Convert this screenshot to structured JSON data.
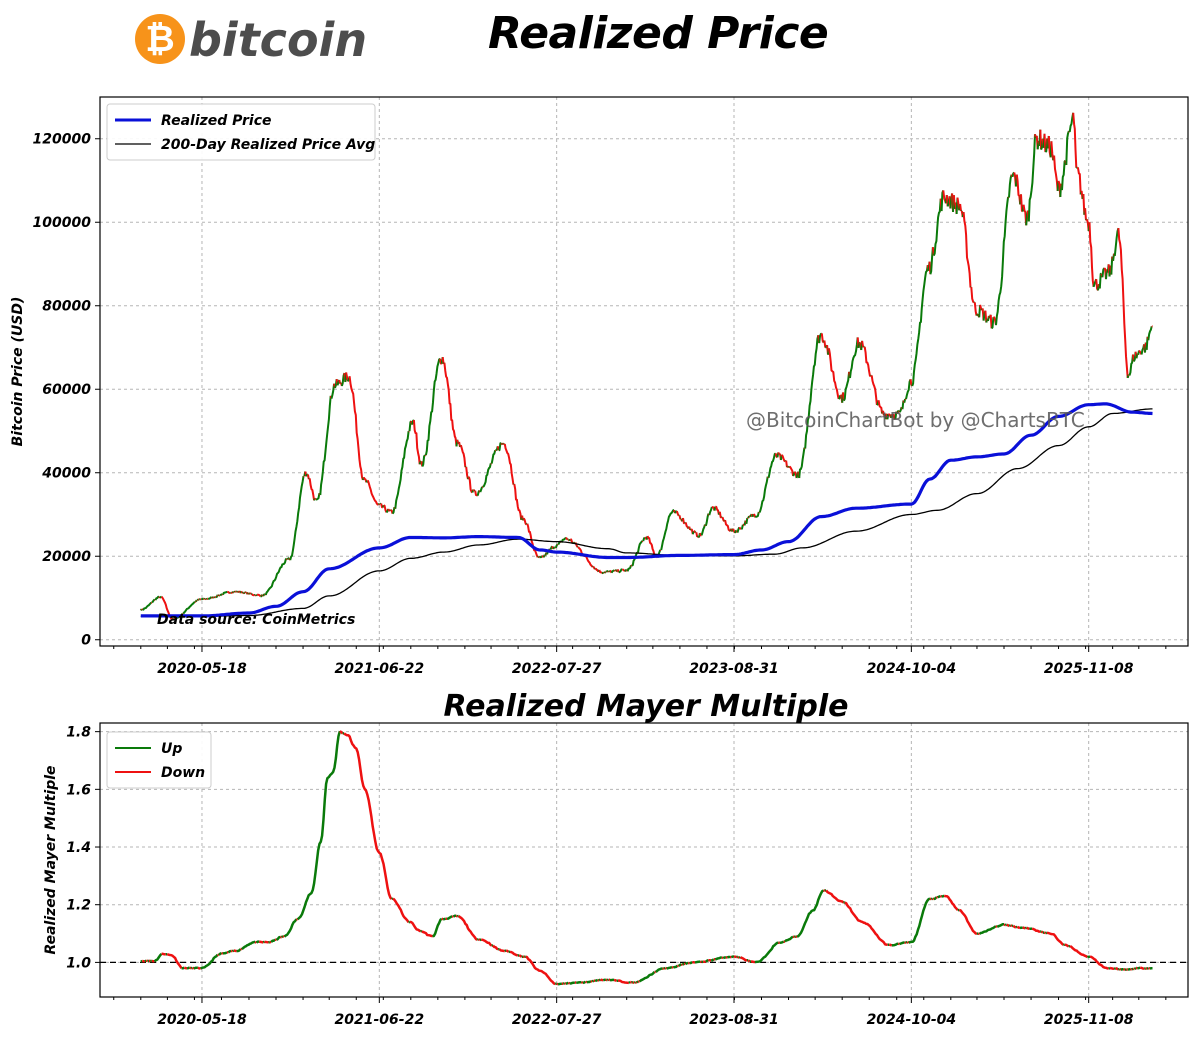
{
  "header": {
    "logo_text": "bitcoin",
    "title": "Realized Price"
  },
  "watermark": "@BitcoinChartBot by @ChartsBTC",
  "data_source": "Data source: CoinMetrics",
  "colors": {
    "realized_price": "#0a10d8",
    "avg_200d": "#000000",
    "up": "#0a7a0a",
    "down": "#ee1111",
    "bitcoin_orange": "#f7931a",
    "logo_grey": "#4d4d4d"
  },
  "chart_data": [
    {
      "type": "line",
      "title": "",
      "ylabel": "Bitcoin Price (USD)",
      "xlabel": "",
      "x_ticks": [
        "2020-05-18",
        "2021-06-22",
        "2022-07-27",
        "2023-08-31",
        "2024-10-04",
        "2025-11-08"
      ],
      "y_ticks": [
        0,
        20000,
        40000,
        60000,
        80000,
        100000,
        120000
      ],
      "ylim": [
        -1500,
        130000
      ],
      "xlim": [
        "2019-10-01",
        "2026-06-20"
      ],
      "grid": true,
      "legend_position": "top-left",
      "price_coloring": "green when rising, red when falling",
      "series": [
        {
          "name": "Realized Price",
          "x": [
            "2020-01-01",
            "2020-05-18",
            "2020-09-01",
            "2020-11-01",
            "2021-01-01",
            "2021-03-01",
            "2021-06-22",
            "2021-09-01",
            "2021-11-15",
            "2022-02-01",
            "2022-05-01",
            "2022-06-20",
            "2022-07-27",
            "2022-11-20",
            "2023-01-01",
            "2023-05-01",
            "2023-08-31",
            "2023-11-01",
            "2024-01-01",
            "2024-03-15",
            "2024-06-01",
            "2024-10-04",
            "2024-11-15",
            "2025-01-01",
            "2025-03-01",
            "2025-05-01",
            "2025-07-01",
            "2025-09-01",
            "2025-11-08",
            "2025-12-15",
            "2026-02-15",
            "2026-04-01"
          ],
          "values": [
            5700,
            5700,
            6400,
            8000,
            11500,
            17000,
            22000,
            24500,
            24400,
            24700,
            24500,
            21500,
            21000,
            19700,
            19700,
            20200,
            20400,
            21500,
            23500,
            29500,
            31500,
            32500,
            38500,
            43000,
            43800,
            44500,
            49000,
            53500,
            56300,
            56500,
            54500,
            54200
          ]
        },
        {
          "name": "200-Day Realized Price Avg",
          "x": [
            "2020-01-01",
            "2020-05-18",
            "2020-09-01",
            "2021-01-01",
            "2021-03-01",
            "2021-06-22",
            "2021-09-01",
            "2021-11-15",
            "2022-02-01",
            "2022-05-01",
            "2022-07-27",
            "2022-11-20",
            "2023-01-01",
            "2023-05-01",
            "2023-08-31",
            "2023-12-01",
            "2024-02-01",
            "2024-06-01",
            "2024-10-04",
            "2024-12-01",
            "2025-03-01",
            "2025-06-01",
            "2025-09-01",
            "2025-11-08",
            "2026-01-01",
            "2026-04-01"
          ],
          "values": [
            5600,
            5600,
            5800,
            7500,
            10500,
            16500,
            19500,
            21000,
            22700,
            24100,
            23500,
            21800,
            20800,
            20200,
            20100,
            20500,
            22000,
            26000,
            30000,
            31000,
            35000,
            41000,
            46500,
            51000,
            54200,
            55300
          ]
        },
        {
          "name": "BTC Price",
          "x": [
            "2020-01-01",
            "2020-02-15",
            "2020-03-13",
            "2020-05-18",
            "2020-08-01",
            "2020-10-01",
            "2020-12-01",
            "2021-01-08",
            "2021-02-01",
            "2021-03-14",
            "2021-04-14",
            "2021-05-20",
            "2021-06-22",
            "2021-07-20",
            "2021-09-06",
            "2021-09-25",
            "2021-11-10",
            "2021-12-15",
            "2022-01-24",
            "2022-03-30",
            "2022-05-12",
            "2022-06-18",
            "2022-07-27",
            "2022-08-15",
            "2022-11-10",
            "2023-01-01",
            "2023-02-15",
            "2023-03-10",
            "2023-04-14",
            "2023-06-15",
            "2023-07-14",
            "2023-08-31",
            "2023-10-20",
            "2023-12-05",
            "2024-01-23",
            "2024-03-14",
            "2024-05-01",
            "2024-06-07",
            "2024-08-05",
            "2024-09-06",
            "2024-10-04",
            "2024-11-12",
            "2024-12-17",
            "2025-01-20",
            "2025-02-28",
            "2025-04-09",
            "2025-05-22",
            "2025-06-22",
            "2025-07-14",
            "2025-08-14",
            "2025-09-01",
            "2025-10-06",
            "2025-10-11",
            "2025-11-08",
            "2025-11-21",
            "2025-12-25",
            "2026-01-14",
            "2026-02-06",
            "2026-02-20",
            "2026-03-15",
            "2026-04-01"
          ],
          "values": [
            7200,
            10200,
            5000,
            9700,
            11500,
            10600,
            19200,
            40000,
            33000,
            61000,
            63000,
            38000,
            32000,
            30500,
            52000,
            42000,
            67500,
            47000,
            35000,
            47000,
            29000,
            19500,
            22500,
            24200,
            16200,
            16600,
            24500,
            20000,
            30500,
            25000,
            31500,
            26000,
            30000,
            44000,
            39500,
            73000,
            58000,
            71000,
            54000,
            54000,
            62000,
            89000,
            106000,
            104000,
            79000,
            76000,
            111000,
            101000,
            120000,
            118000,
            108000,
            124500,
            112000,
            100000,
            85000,
            88000,
            97000,
            63500,
            68000,
            70000,
            75000
          ]
        }
      ]
    },
    {
      "type": "line",
      "title": "Realized Mayer Multiple",
      "ylabel": "Realized Mayer Multiple",
      "xlabel": "",
      "x_ticks": [
        "2020-05-18",
        "2021-06-22",
        "2022-07-27",
        "2023-08-31",
        "2024-10-04",
        "2025-11-08"
      ],
      "y_ticks": [
        1.0,
        1.2,
        1.4,
        1.6,
        1.8
      ],
      "ylim": [
        0.88,
        1.83
      ],
      "xlim": [
        "2019-10-01",
        "2026-06-20"
      ],
      "grid": true,
      "legend_position": "top-left",
      "reference_line": 1.0,
      "series": [
        {
          "name": "Up"
        },
        {
          "name": "Down"
        },
        {
          "name": "Realized Mayer Multiple",
          "x": [
            "2020-01-01",
            "2020-02-01",
            "2020-02-20",
            "2020-03-10",
            "2020-04-05",
            "2020-05-18",
            "2020-07-01",
            "2020-08-01",
            "2020-09-15",
            "2020-10-15",
            "2020-11-20",
            "2020-12-20",
            "2021-01-20",
            "2021-02-10",
            "2021-02-25",
            "2021-03-10",
            "2021-03-25",
            "2021-04-10",
            "2021-05-01",
            "2021-05-20",
            "2021-06-22",
            "2021-07-20",
            "2021-08-30",
            "2021-09-20",
            "2021-10-20",
            "2021-11-10",
            "2021-12-15",
            "2022-02-01",
            "2022-04-01",
            "2022-05-15",
            "2022-06-20",
            "2022-07-27",
            "2022-09-15",
            "2022-11-15",
            "2023-01-15",
            "2023-04-01",
            "2023-06-01",
            "2023-08-31",
            "2023-10-20",
            "2023-12-15",
            "2024-01-20",
            "2024-02-25",
            "2024-03-20",
            "2024-05-01",
            "2024-06-15",
            "2024-08-15",
            "2024-10-04",
            "2024-11-15",
            "2024-12-20",
            "2025-01-20",
            "2025-03-01",
            "2025-05-01",
            "2025-06-15",
            "2025-08-15",
            "2025-09-15",
            "2025-11-08",
            "2025-12-20",
            "2026-02-01",
            "2026-03-01",
            "2026-04-01"
          ],
          "values": [
            1.005,
            1.005,
            1.03,
            1.025,
            0.98,
            0.98,
            1.03,
            1.04,
            1.07,
            1.07,
            1.09,
            1.15,
            1.24,
            1.42,
            1.64,
            1.66,
            1.8,
            1.79,
            1.74,
            1.6,
            1.38,
            1.22,
            1.14,
            1.11,
            1.09,
            1.15,
            1.16,
            1.08,
            1.04,
            1.02,
            0.97,
            0.925,
            0.93,
            0.94,
            0.93,
            0.98,
            1.0,
            1.02,
            1.0,
            1.07,
            1.09,
            1.18,
            1.25,
            1.21,
            1.14,
            1.06,
            1.07,
            1.22,
            1.23,
            1.18,
            1.1,
            1.13,
            1.12,
            1.1,
            1.06,
            1.02,
            0.98,
            0.975,
            0.98,
            0.98
          ]
        }
      ]
    }
  ]
}
